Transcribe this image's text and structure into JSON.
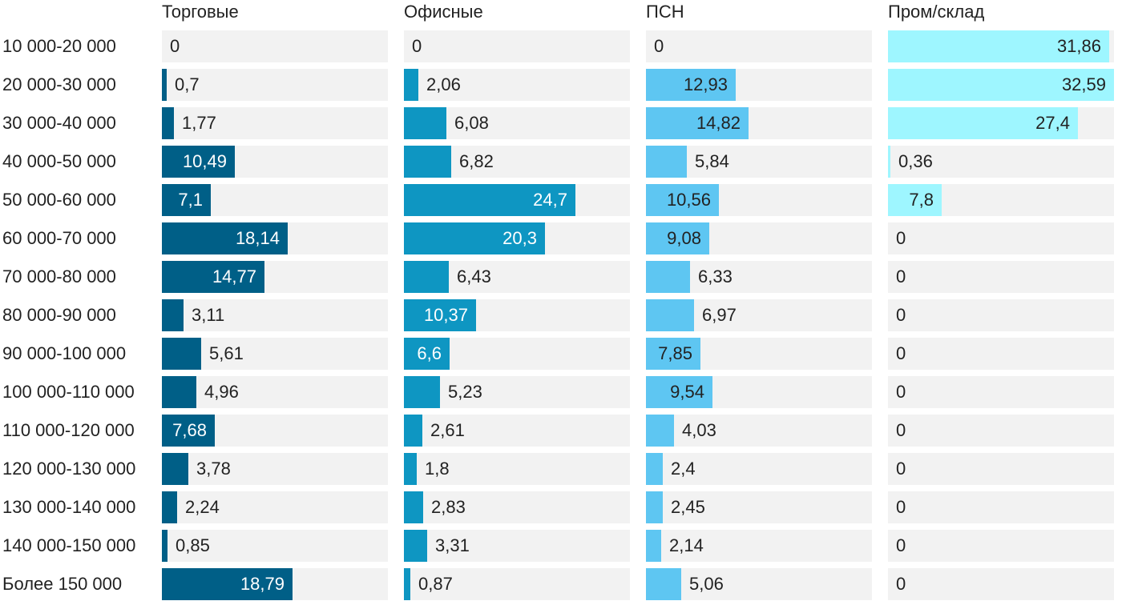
{
  "chart_data": {
    "type": "bar",
    "orientation": "horizontal",
    "categories": [
      "10 000-20 000",
      "20 000-30 000",
      "30 000-40 000",
      "40 000-50 000",
      "50 000-60 000",
      "60 000-70 000",
      "70 000-80 000",
      "80 000-90 000",
      "90 000-100 000",
      "100 000-110 000",
      "110 000-120 000",
      "120 000-130 000",
      "130 000-140 000",
      "140 000-150 000",
      "Более 150 000"
    ],
    "series": [
      {
        "name": "Торговые",
        "color": "#005f87",
        "text_inside_color": "#ffffff",
        "values": [
          0,
          0.7,
          1.77,
          10.49,
          7.1,
          18.14,
          14.77,
          3.11,
          5.61,
          4.96,
          7.68,
          3.78,
          2.24,
          0.85,
          18.79
        ],
        "labels": [
          "0",
          "0,7",
          "1,77",
          "10,49",
          "7,1",
          "18,14",
          "14,77",
          "3,11",
          "5,61",
          "4,96",
          "7,68",
          "3,78",
          "2,24",
          "0,85",
          "18,79"
        ]
      },
      {
        "name": "Офисные",
        "color": "#0e96c2",
        "text_inside_color": "#ffffff",
        "values": [
          0,
          2.06,
          6.08,
          6.82,
          24.7,
          20.3,
          6.43,
          10.37,
          6.6,
          5.23,
          2.61,
          1.8,
          2.83,
          3.31,
          0.87
        ],
        "labels": [
          "0",
          "2,06",
          "6,08",
          "6,82",
          "24,7",
          "20,3",
          "6,43",
          "10,37",
          "6,6",
          "5,23",
          "2,61",
          "1,8",
          "2,83",
          "3,31",
          "0,87"
        ]
      },
      {
        "name": "ПСН",
        "color": "#5ec6f2",
        "text_inside_color": "#222222",
        "values": [
          0,
          12.93,
          14.82,
          5.84,
          10.56,
          9.08,
          6.33,
          6.97,
          7.85,
          9.54,
          4.03,
          2.4,
          2.45,
          2.14,
          5.06
        ],
        "labels": [
          "0",
          "12,93",
          "14,82",
          "5,84",
          "10,56",
          "9,08",
          "6,33",
          "6,97",
          "7,85",
          "9,54",
          "4,03",
          "2,4",
          "2,45",
          "2,14",
          "5,06"
        ]
      },
      {
        "name": "Пром/склад",
        "color": "#9ef6ff",
        "text_inside_color": "#222222",
        "values": [
          31.86,
          32.59,
          27.4,
          0.36,
          7.8,
          0,
          0,
          0,
          0,
          0,
          0,
          0,
          0,
          0,
          0
        ],
        "labels": [
          "31,86",
          "32,59",
          "27,4",
          "0,36",
          "7,8",
          "0",
          "0",
          "0",
          "0",
          "0",
          "0",
          "0",
          "0",
          "0",
          "0"
        ]
      }
    ],
    "track_color": "#f2f2f2"
  }
}
